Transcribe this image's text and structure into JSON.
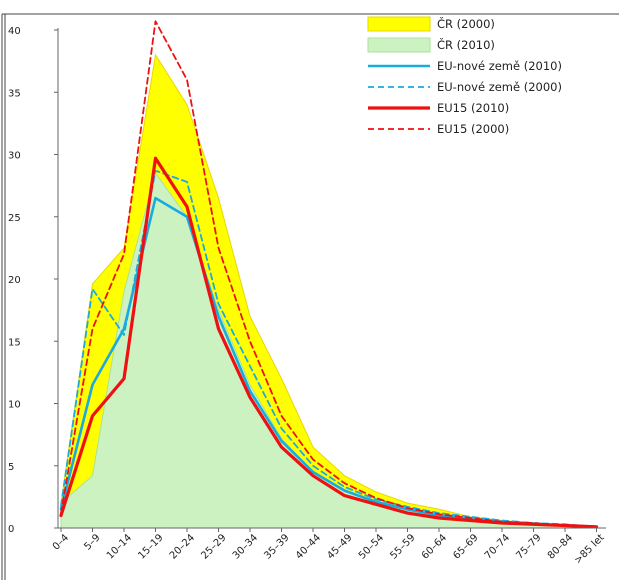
{
  "chart_data": {
    "type": "area",
    "title": "",
    "xlabel": "",
    "ylabel": "",
    "ylim": [
      0,
      40
    ],
    "yticks": [
      0,
      5,
      10,
      15,
      20,
      25,
      30,
      35,
      40
    ],
    "grid": false,
    "legend_position": "top-right",
    "categories": [
      "0–4",
      "5–9",
      "10–14",
      "15–19",
      "20–24",
      "25–29",
      "30–34",
      "35–39",
      "40–44",
      "45–49",
      "50–54",
      "55–59",
      "60–64",
      "65–69",
      "70–74",
      "75–79",
      "80–84",
      ">85 let"
    ],
    "series": [
      {
        "name": "ČR (2000)",
        "style": "area",
        "color": "#ffff00",
        "values": [
          2.0,
          19.6,
          22.5,
          38.0,
          34.0,
          26.5,
          17.0,
          12.0,
          6.5,
          4.2,
          2.9,
          2.0,
          1.5,
          0.9,
          0.6,
          0.4,
          0.2,
          0.1
        ]
      },
      {
        "name": "ČR (2010)",
        "style": "area",
        "color": "#ccf2c2",
        "values": [
          2.0,
          4.2,
          19.0,
          28.5,
          25.0,
          17.5,
          11.5,
          7.2,
          4.5,
          3.1,
          2.1,
          1.4,
          0.9,
          0.6,
          0.4,
          0.3,
          0.2,
          0.1
        ]
      },
      {
        "name": "EU-nové země (2010)",
        "style": "line-solid",
        "color": "#1aabde",
        "values": [
          1.5,
          11.5,
          16.0,
          26.5,
          25.0,
          17.0,
          11.0,
          7.0,
          4.5,
          3.0,
          2.1,
          1.5,
          1.0,
          0.7,
          0.5,
          0.3,
          0.2,
          0.1
        ]
      },
      {
        "name": "EU-nové země (2000)",
        "style": "line-dashed",
        "color": "#1aabde",
        "values": [
          1.8,
          19.2,
          15.5,
          28.7,
          27.8,
          18.0,
          13.0,
          8.0,
          5.0,
          3.3,
          2.3,
          1.7,
          1.2,
          0.9,
          0.6,
          0.4,
          0.3,
          0.1
        ]
      },
      {
        "name": "EU15 (2010)",
        "style": "line-solid",
        "color": "#ee1111",
        "values": [
          1.0,
          9.0,
          12.0,
          29.7,
          25.8,
          16.0,
          10.5,
          6.5,
          4.2,
          2.6,
          1.9,
          1.2,
          0.8,
          0.6,
          0.4,
          0.3,
          0.2,
          0.1
        ]
      },
      {
        "name": "EU15 (2000)",
        "style": "line-dashed",
        "color": "#ee1111",
        "values": [
          1.2,
          16.0,
          22.0,
          40.7,
          36.0,
          22.5,
          15.0,
          9.0,
          5.5,
          3.6,
          2.4,
          1.6,
          1.1,
          0.8,
          0.5,
          0.4,
          0.2,
          0.1
        ]
      }
    ]
  }
}
